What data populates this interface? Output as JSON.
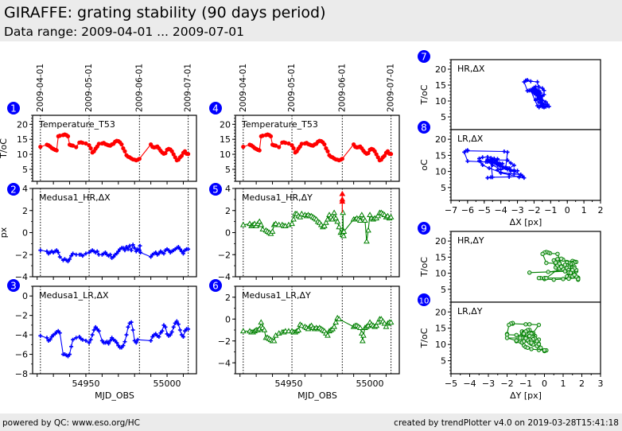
{
  "header": {
    "title": "GIRAFFE: grating stability (90 days period)",
    "subtitle": "Data range: 2009-04-01 ... 2009-07-01"
  },
  "footer": {
    "left": "powered by QC: www.eso.org/HC",
    "right": "created by trendPlotter v4.0 on 2019-03-28T15:41:18"
  },
  "colors": {
    "temperature": "#ff0000",
    "dx": "#0000ff",
    "dy": "#008000",
    "badge": "#0000ff"
  },
  "date_markers": {
    "labels": [
      "2009-04-01",
      "2009-05-01",
      "2009-06-01",
      "2009-07-01"
    ],
    "mjd": [
      54922,
      54952,
      54983,
      55013
    ]
  },
  "chart_data": [
    {
      "id": 1,
      "type": "line",
      "column": "left",
      "label": "Temperature_T53",
      "ylabel": "T/oC",
      "xlabel": "",
      "series_color": "temperature",
      "marker": "circle",
      "xlim": [
        54917.2,
        55018.1
      ],
      "ylim": [
        1,
        23
      ],
      "yticks": [
        5,
        10,
        15,
        20
      ],
      "x": [
        54922,
        54926,
        54927,
        54928,
        54929,
        54930,
        54931,
        54932,
        54933,
        54934,
        54936,
        54937,
        54938,
        54939,
        54940,
        54941,
        54942,
        54944,
        54946,
        54947,
        54948,
        54950,
        54952,
        54953,
        54954,
        54955,
        54956,
        54957,
        54958,
        54960,
        54961,
        54962,
        54963,
        54964,
        54965,
        54966,
        54967,
        54968,
        54969,
        54970,
        54971,
        54972,
        54973,
        54974,
        54975,
        54976,
        54977,
        54978,
        54979,
        54980,
        54981,
        54982,
        54983,
        54990,
        54991,
        54992,
        54993,
        54994,
        54995,
        54996,
        54997,
        54998,
        54999,
        55000,
        55001,
        55002,
        55003,
        55004,
        55005,
        55006,
        55007,
        55008,
        55009,
        55010,
        55011,
        55012,
        55013
      ],
      "y": [
        12.5,
        13.2,
        13.0,
        12.6,
        12.1,
        11.8,
        11.5,
        11.3,
        16.0,
        16.2,
        16.4,
        16.6,
        16.4,
        16.0,
        13.2,
        13.0,
        12.9,
        12.4,
        13.9,
        14.0,
        13.8,
        13.6,
        13.0,
        12.0,
        10.6,
        11.0,
        11.9,
        12.6,
        13.5,
        13.6,
        13.8,
        13.4,
        13.2,
        13.0,
        12.9,
        13.3,
        13.5,
        14.2,
        14.5,
        14.4,
        14.0,
        13.3,
        12.0,
        11.0,
        9.7,
        9.2,
        9.0,
        8.6,
        8.3,
        8.2,
        8.0,
        8.2,
        8.5,
        13.3,
        12.5,
        12.3,
        12.4,
        12.6,
        12.0,
        11.2,
        10.6,
        10.2,
        10.4,
        11.5,
        11.8,
        11.6,
        11.0,
        10.0,
        9.0,
        8.0,
        8.2,
        9.0,
        9.5,
        10.5,
        11.0,
        10.2,
        10.1
      ]
    },
    {
      "id": 2,
      "type": "line",
      "column": "left",
      "label": "Medusa1_HR,ΔX",
      "ylabel": "px",
      "xlabel": "",
      "series_color": "dx",
      "marker": "plus",
      "xlim": [
        54917.2,
        55018.1
      ],
      "ylim": [
        -4,
        4
      ],
      "yticks": [
        -4,
        -2,
        0,
        2,
        4
      ],
      "x": [
        54922,
        54926,
        54927,
        54928,
        54929,
        54930,
        54931,
        54932,
        54933,
        54934,
        54936,
        54937,
        54938,
        54939,
        54940,
        54941,
        54942,
        54944,
        54946,
        54947,
        54948,
        54950,
        54952,
        54953,
        54954,
        54955,
        54956,
        54957,
        54958,
        54960,
        54961,
        54962,
        54963,
        54964,
        54965,
        54966,
        54967,
        54968,
        54969,
        54970,
        54971,
        54972,
        54973,
        54974,
        54975,
        54976,
        54977,
        54978,
        54979,
        54980,
        54981,
        54982,
        54983,
        54983.3,
        54983.6,
        54990,
        54991,
        54992,
        54993,
        54994,
        54995,
        54996,
        54997,
        54998,
        54999,
        55000,
        55001,
        55002,
        55003,
        55004,
        55005,
        55006,
        55007,
        55008,
        55009,
        55010,
        55011,
        55012,
        55013
      ],
      "y": [
        -1.6,
        -1.7,
        -1.9,
        -1.8,
        -1.7,
        -1.8,
        -1.7,
        -1.6,
        -1.8,
        -2.2,
        -2.5,
        -2.4,
        -2.5,
        -2.6,
        -2.4,
        -2.1,
        -1.9,
        -2.0,
        -2.0,
        -2.0,
        -2.1,
        -1.9,
        -1.8,
        -1.7,
        -1.6,
        -1.7,
        -1.8,
        -1.7,
        -2.0,
        -2.0,
        -1.9,
        -1.8,
        -2.0,
        -2.1,
        -2.0,
        -2.3,
        -2.2,
        -2.0,
        -1.9,
        -1.7,
        -1.5,
        -1.4,
        -1.4,
        -1.6,
        -1.3,
        -1.5,
        -1.2,
        -1.6,
        -1.1,
        -1.4,
        -1.7,
        -1.5,
        -1.6,
        -1.2,
        -1.8,
        -2.2,
        -2.0,
        -1.9,
        -1.8,
        -2.0,
        -1.9,
        -1.7,
        -1.8,
        -1.9,
        -1.6,
        -1.5,
        -1.6,
        -1.8,
        -1.7,
        -1.6,
        -1.5,
        -1.4,
        -1.3,
        -1.5,
        -1.7,
        -1.9,
        -1.6,
        -1.5,
        -1.5
      ]
    },
    {
      "id": 3,
      "type": "line",
      "column": "left",
      "label": "Medusa1_LR,ΔX",
      "ylabel": "",
      "xlabel": "MJD_OBS",
      "series_color": "dx",
      "marker": "plus",
      "xlim": [
        54917.2,
        55018.1
      ],
      "ylim": [
        -8,
        1
      ],
      "yticks": [
        -8,
        -6,
        -4,
        -2,
        0
      ],
      "xticks": [
        54950,
        55000
      ],
      "x": [
        54922,
        54926,
        54927,
        54928,
        54929,
        54930,
        54931,
        54932,
        54933,
        54934,
        54936,
        54937,
        54938,
        54939,
        54940,
        54941,
        54942,
        54944,
        54946,
        54947,
        54948,
        54950,
        54952,
        54953,
        54954,
        54955,
        54956,
        54957,
        54958,
        54960,
        54961,
        54962,
        54963,
        54964,
        54965,
        54966,
        54967,
        54968,
        54969,
        54970,
        54971,
        54972,
        54973,
        54974,
        54975,
        54976,
        54977,
        54978,
        54979,
        54980,
        54981,
        54982,
        54990,
        54991,
        54992,
        54993,
        54994,
        54995,
        54996,
        54997,
        54998,
        54999,
        55000,
        55001,
        55002,
        55003,
        55004,
        55005,
        55006,
        55007,
        55008,
        55009,
        55010,
        55011,
        55012,
        55013
      ],
      "y": [
        -4.1,
        -4.3,
        -4.6,
        -4.5,
        -4.2,
        -4.0,
        -3.9,
        -3.7,
        -3.6,
        -3.8,
        -6.0,
        -6.0,
        -6.1,
        -6.2,
        -6.0,
        -5.2,
        -4.5,
        -4.3,
        -4.2,
        -4.4,
        -4.5,
        -4.6,
        -4.8,
        -4.5,
        -4.0,
        -3.5,
        -3.2,
        -3.4,
        -3.6,
        -4.6,
        -4.8,
        -4.8,
        -4.7,
        -4.9,
        -4.6,
        -4.3,
        -4.5,
        -4.6,
        -4.8,
        -5.1,
        -5.3,
        -5.3,
        -5.1,
        -4.7,
        -4.0,
        -3.2,
        -2.8,
        -2.7,
        -3.5,
        -4.6,
        -4.8,
        -4.5,
        -4.6,
        -4.2,
        -4.0,
        -3.9,
        -4.1,
        -4.2,
        -3.8,
        -3.6,
        -3.0,
        -3.2,
        -3.9,
        -4.1,
        -4.0,
        -3.7,
        -3.2,
        -2.8,
        -2.6,
        -2.9,
        -3.5,
        -4.0,
        -4.2,
        -3.6,
        -3.4,
        -3.4
      ]
    },
    {
      "id": 4,
      "type": "line",
      "column": "middle",
      "label": "Temperature_T53",
      "ylabel": "",
      "xlabel": "",
      "series_color": "temperature",
      "marker": "circle",
      "xlim": [
        54917.2,
        55018.1
      ],
      "ylim": [
        1,
        23
      ],
      "yticks": [
        5,
        10,
        15,
        20
      ],
      "same_as": 1
    },
    {
      "id": 5,
      "type": "line",
      "column": "middle",
      "label": "Medusa1_HR,ΔY",
      "ylabel": "",
      "xlabel": "",
      "series_color": "dy",
      "marker": "triangle",
      "xlim": [
        54917.2,
        55018.1
      ],
      "ylim": [
        -4,
        4
      ],
      "yticks": [
        -4,
        -2,
        0,
        2,
        4
      ],
      "outliers_red": [
        [
          54983,
          3.5
        ],
        [
          54983,
          3.0
        ],
        [
          54983,
          2.8
        ]
      ],
      "x": [
        54922,
        54926,
        54927,
        54928,
        54929,
        54930,
        54931,
        54932,
        54933,
        54934,
        54936,
        54937,
        54938,
        54939,
        54940,
        54941,
        54942,
        54944,
        54946,
        54947,
        54948,
        54950,
        54952,
        54953,
        54954,
        54955,
        54956,
        54957,
        54958,
        54960,
        54961,
        54962,
        54963,
        54964,
        54965,
        54966,
        54967,
        54968,
        54969,
        54970,
        54971,
        54972,
        54973,
        54974,
        54975,
        54976,
        54977,
        54978,
        54979,
        54980,
        54981,
        54982,
        54983,
        54983.2,
        54983.4,
        54983.6,
        54983.8,
        54984,
        54990,
        54991,
        54992,
        54993,
        54994,
        54995,
        54996,
        54997,
        54998,
        54999,
        55000,
        55001,
        55002,
        55003,
        55004,
        55005,
        55006,
        55007,
        55008,
        55009,
        55010,
        55011,
        55012,
        55013
      ],
      "y": [
        0.7,
        0.8,
        0.6,
        0.7,
        0.8,
        0.6,
        0.8,
        1.0,
        0.7,
        0.3,
        0.2,
        0.1,
        0.0,
        -0.1,
        0.1,
        0.7,
        0.8,
        0.7,
        0.7,
        0.6,
        0.6,
        0.7,
        0.8,
        1.2,
        1.7,
        1.7,
        1.5,
        1.4,
        1.7,
        1.6,
        1.5,
        1.6,
        1.5,
        1.5,
        1.4,
        1.3,
        1.2,
        1.0,
        0.9,
        0.7,
        0.5,
        0.6,
        0.9,
        1.2,
        1.6,
        1.4,
        1.2,
        1.8,
        1.3,
        1.0,
        0.5,
        0.0,
        0.0,
        -0.2,
        1.8,
        0.1,
        -0.3,
        0.1,
        1.2,
        1.2,
        1.3,
        1.2,
        1.1,
        1.6,
        1.3,
        1.1,
        -0.8,
        0.2,
        1.6,
        1.3,
        1.2,
        1.3,
        1.3,
        1.5,
        1.8,
        1.8,
        1.7,
        1.6,
        1.4,
        1.5,
        1.3,
        1.4
      ]
    },
    {
      "id": 6,
      "type": "line",
      "column": "middle",
      "label": "Medusa1_LR,ΔY",
      "ylabel": "",
      "xlabel": "MJD_OBS",
      "series_color": "dy",
      "marker": "triangle",
      "xlim": [
        54917.2,
        55018.1
      ],
      "ylim": [
        -5,
        3
      ],
      "yticks": [
        -4,
        -2,
        0,
        2
      ],
      "xticks": [
        54950,
        55000
      ],
      "x": [
        54922,
        54926,
        54927,
        54928,
        54929,
        54930,
        54931,
        54932,
        54933,
        54934,
        54935,
        54936,
        54937,
        54938,
        54939,
        54940,
        54941,
        54942,
        54944,
        54946,
        54947,
        54948,
        54950,
        54952,
        54953,
        54954,
        54955,
        54956,
        54957,
        54958,
        54960,
        54961,
        54962,
        54963,
        54964,
        54965,
        54966,
        54967,
        54968,
        54969,
        54970,
        54971,
        54972,
        54973,
        54974,
        54975,
        54976,
        54977,
        54978,
        54979,
        54980,
        54981,
        54990,
        54991,
        54992,
        54993,
        54994,
        54995,
        54995.5,
        54996,
        54997,
        54998,
        54999,
        55000,
        55001,
        55002,
        55003,
        55004,
        55005,
        55006,
        55007,
        55008,
        55009,
        55010,
        55011,
        55012,
        55013
      ],
      "y": [
        -1.1,
        -1.1,
        -1.2,
        -1.2,
        -1.1,
        -1.0,
        -1.0,
        -0.9,
        -0.3,
        -0.8,
        -1.0,
        -1.7,
        -1.7,
        -1.8,
        -1.9,
        -2.0,
        -2.0,
        -1.5,
        -1.3,
        -1.2,
        -1.2,
        -1.1,
        -1.1,
        -1.1,
        -1.2,
        -1.2,
        -1.1,
        -1.0,
        -0.5,
        -0.6,
        -0.7,
        -0.8,
        -0.9,
        -0.7,
        -0.6,
        -0.8,
        -0.9,
        -0.8,
        -0.9,
        -0.8,
        -0.9,
        -1.0,
        -1.1,
        -1.3,
        -1.5,
        -1.1,
        -1.0,
        -0.9,
        -0.7,
        -0.3,
        0.1,
        0.0,
        -0.7,
        -0.6,
        -0.6,
        -0.7,
        -0.8,
        -1.3,
        -2.0,
        -1.5,
        -0.8,
        -0.7,
        -0.6,
        -0.3,
        -0.5,
        -0.6,
        -0.7,
        -0.6,
        -0.3,
        0.0,
        0.0,
        -0.2,
        -0.4,
        -0.7,
        -0.4,
        -0.3,
        -0.3
      ]
    },
    {
      "id": 7,
      "type": "scatter",
      "column": "right",
      "label": "HR,ΔX",
      "ylabel": "T/oC",
      "xlabel": "",
      "series_color": "dx",
      "marker": "plus",
      "xlim": [
        -7,
        2
      ],
      "ylim": [
        1,
        23
      ],
      "yticks": [
        5,
        10,
        15,
        20
      ],
      "source": {
        "x_from": 2,
        "y_from": 1
      }
    },
    {
      "id": 8,
      "type": "scatter",
      "column": "right",
      "label": "LR,ΔX",
      "ylabel": "oC",
      "xlabel": "ΔX [px]",
      "series_color": "dx",
      "marker": "plus",
      "xlim": [
        -7,
        2
      ],
      "ylim": [
        1,
        23
      ],
      "yticks": [
        5,
        10,
        15,
        20
      ],
      "xticks": [
        -7,
        -6,
        -5,
        -4,
        -3,
        -2,
        -1,
        0,
        1,
        2
      ],
      "source": {
        "x_from": 3,
        "y_from": 1
      }
    },
    {
      "id": 9,
      "type": "scatter",
      "column": "right",
      "label": "HR,ΔY",
      "ylabel": "T/oC",
      "xlabel": "",
      "series_color": "dy",
      "marker": "circle-open",
      "xlim": [
        -5,
        3
      ],
      "ylim": [
        1,
        23
      ],
      "yticks": [
        5,
        10,
        15,
        20
      ],
      "source": {
        "x_from": 5,
        "y_from": 1
      }
    },
    {
      "id": 10,
      "type": "scatter",
      "column": "right",
      "label": "LR,ΔY",
      "ylabel": "T/oC",
      "xlabel": "ΔY [px]",
      "series_color": "dy",
      "marker": "circle-open",
      "xlim": [
        -5,
        3
      ],
      "ylim": [
        1,
        23
      ],
      "yticks": [
        5,
        10,
        15,
        20
      ],
      "xticks": [
        -5,
        -4,
        -3,
        -2,
        -1,
        0,
        1,
        2,
        3
      ],
      "source": {
        "x_from": 6,
        "y_from": 1
      }
    }
  ]
}
